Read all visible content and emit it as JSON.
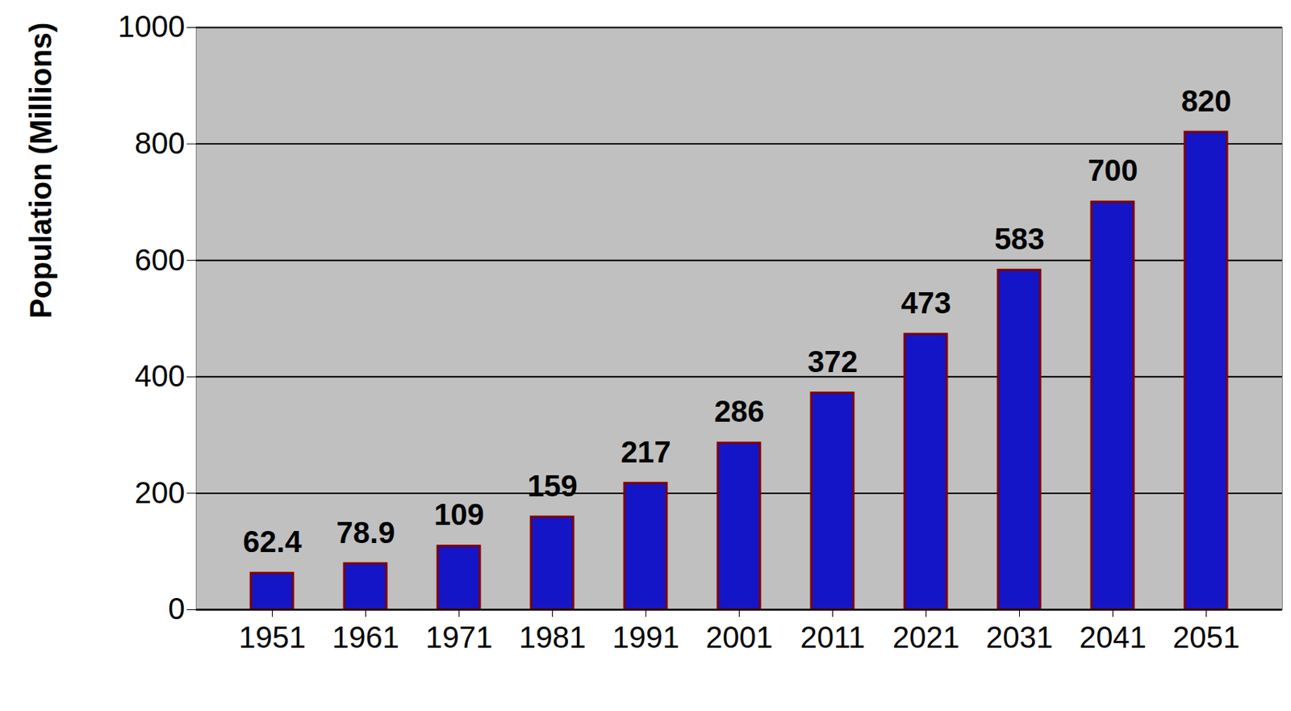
{
  "chart_data": {
    "type": "bar",
    "y_label": "Population (Millions)",
    "categories": [
      "1951",
      "1961",
      "1971",
      "1981",
      "1991",
      "2001",
      "2011",
      "2021",
      "2031",
      "2041",
      "2051"
    ],
    "values": [
      62.4,
      78.9,
      109,
      159,
      217,
      286,
      372,
      473,
      583,
      700,
      820
    ],
    "color": "#1515c8",
    "ylim": [
      0,
      1000
    ],
    "yticks": [
      0,
      200,
      400,
      600,
      800,
      1000
    ],
    "grid": true,
    "data_labels": true
  }
}
